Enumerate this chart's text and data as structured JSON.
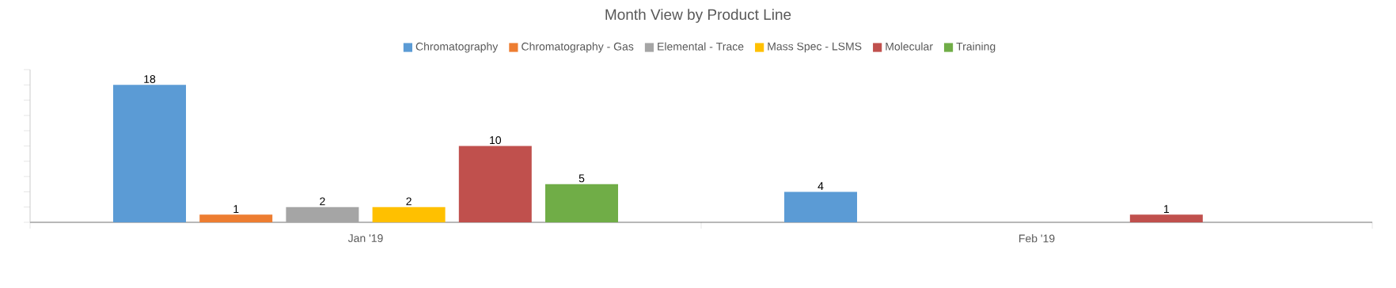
{
  "chart_data": {
    "type": "bar",
    "title": "Month View by Product Line",
    "categories": [
      "Jan '19",
      "Feb '19"
    ],
    "series": [
      {
        "name": "Chromatography",
        "color": "#5b9bd5",
        "values": [
          18,
          4
        ]
      },
      {
        "name": "Chromatography - Gas",
        "color": "#ed7d31",
        "values": [
          1,
          null
        ]
      },
      {
        "name": "Elemental - Trace",
        "color": "#a5a5a5",
        "values": [
          2,
          null
        ]
      },
      {
        "name": "Mass Spec - LSMS",
        "color": "#ffc000",
        "values": [
          2,
          null
        ]
      },
      {
        "name": "Molecular",
        "color": "#c0504d",
        "values": [
          10,
          1
        ]
      },
      {
        "name": "Training",
        "color": "#70ad47",
        "values": [
          5,
          null
        ]
      }
    ],
    "ylim": [
      0,
      20
    ],
    "yticks": [
      {
        "value": 0,
        "label": null
      },
      {
        "value": 2,
        "label": null
      },
      {
        "value": 4,
        "label": null
      },
      {
        "value": 6,
        "label": null
      },
      {
        "value": 8,
        "label": null
      },
      {
        "value": 10,
        "label": null
      },
      {
        "value": 12,
        "label": null
      },
      {
        "value": 14,
        "label": null
      },
      {
        "value": 16,
        "label": null
      },
      {
        "value": 18,
        "label": null
      },
      {
        "value": 20,
        "label": null
      }
    ],
    "tick_labels": "x",
    "data_labels": true,
    "legend": "top",
    "grid": false
  }
}
